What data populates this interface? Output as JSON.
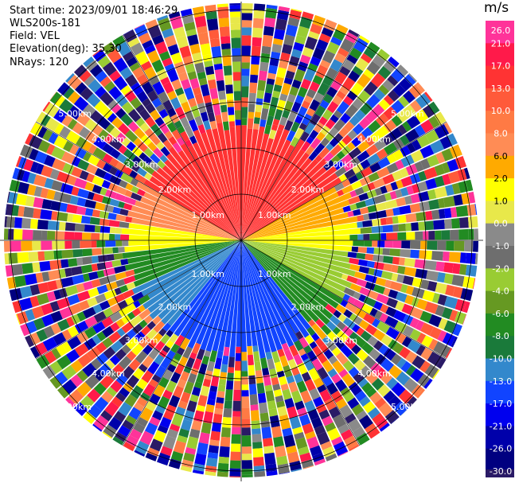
{
  "info": {
    "start_time": "Start time: 2023/09/01 18:46:29",
    "instrument": "WLS200s-181",
    "field": "Field: VEL",
    "elevation": "Elevation(deg): 35.30",
    "nrays": "NRays: 120"
  },
  "colorbar": {
    "unit": "m/s",
    "ticks": [
      "26.0",
      "21.0",
      "17.0",
      "13.0",
      "10.0",
      "8.0",
      "6.0",
      "2.0",
      "1.0",
      "0.0",
      "-1.0",
      "-2.0",
      "-4.0",
      "-6.0",
      "-8.0",
      "-10.0",
      "-13.0",
      "-17.0",
      "-21.0",
      "-26.0",
      "-30.0"
    ],
    "colors": [
      "#ff3399",
      "#ff1a4a",
      "#ff3333",
      "#ff5a3a",
      "#ff7a44",
      "#ff8c55",
      "#ffaa00",
      "#ffff00",
      "#e8e84a",
      "#8a8a8a",
      "#6e6e6e",
      "#99cc33",
      "#669922",
      "#228b22",
      "#1a7a3a",
      "#3388cc",
      "#1144ff",
      "#0000ee",
      "#0000aa",
      "#000080",
      "#2a1a66"
    ]
  },
  "chart_data": {
    "type": "ppi",
    "field": "VEL",
    "units": "m/s",
    "nrays": 120,
    "range_rings_km": [
      1.0,
      2.0,
      3.0,
      4.0,
      5.0
    ],
    "ring_labels": [
      "1.00km",
      "2.00km",
      "3.00km",
      "4.00km",
      "5.00km"
    ],
    "max_range_km": 5.2,
    "color_scale_min": -30.0,
    "color_scale_max": 26.0,
    "signal_range_km": 2.55
  }
}
